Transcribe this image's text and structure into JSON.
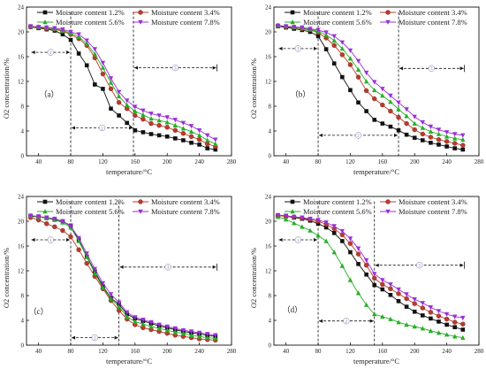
{
  "figure": {
    "panels": [
      "a",
      "b",
      "c",
      "d"
    ]
  },
  "chart_data": [
    {
      "type": "line",
      "panel_label": "（a）",
      "xlabel": "temperature/°C",
      "ylabel": "O2 concentration/%",
      "xlim": [
        25,
        280
      ],
      "ylim": [
        0,
        24
      ],
      "xticks": [
        40,
        80,
        120,
        160,
        200,
        240,
        280
      ],
      "yticks": [
        0,
        4,
        8,
        12,
        16,
        20,
        24
      ],
      "x": [
        30,
        40,
        50,
        60,
        70,
        80,
        90,
        100,
        110,
        120,
        130,
        140,
        150,
        160,
        170,
        180,
        190,
        200,
        210,
        220,
        230,
        240,
        250,
        260
      ],
      "series": [
        {
          "name": "Moisture content 1.2%",
          "marker": "square",
          "color": "#111111",
          "values": [
            20.8,
            20.6,
            20.4,
            20.2,
            19.6,
            18.7,
            16.5,
            14.6,
            11.5,
            10.8,
            7.6,
            6.5,
            5.3,
            4.1,
            3.8,
            3.5,
            3.3,
            3.1,
            2.8,
            2.5,
            2.1,
            1.8,
            1.2,
            1.0
          ]
        },
        {
          "name": "Moisture content 3.4%",
          "marker": "circle",
          "color": "#c0392b",
          "values": [
            20.8,
            20.7,
            20.5,
            20.4,
            20.1,
            19.6,
            18.9,
            17.8,
            15.8,
            13.2,
            10.8,
            8.6,
            7.6,
            6.5,
            5.9,
            5.2,
            4.9,
            4.6,
            4.1,
            3.6,
            3.1,
            2.6,
            1.9,
            1.5
          ]
        },
        {
          "name": "Moisture content 5.6%",
          "marker": "triangle-up",
          "color": "#27ae27",
          "values": [
            20.9,
            20.8,
            20.7,
            20.5,
            20.2,
            19.8,
            19.2,
            18.1,
            16.4,
            14.2,
            11.8,
            9.6,
            8.2,
            7.2,
            6.6,
            6.0,
            5.7,
            5.4,
            4.9,
            4.4,
            3.9,
            3.3,
            2.5,
            1.9
          ]
        },
        {
          "name": "Moisture content 7.8%",
          "marker": "triangle-down",
          "color": "#9b30d9",
          "values": [
            20.9,
            20.8,
            20.7,
            20.6,
            20.4,
            20.0,
            19.6,
            18.6,
            17.2,
            15.0,
            12.5,
            10.3,
            8.9,
            7.9,
            7.3,
            6.8,
            6.5,
            6.2,
            5.8,
            5.3,
            4.8,
            4.1,
            3.3,
            2.6
          ]
        }
      ],
      "zones": [
        {
          "from": 30,
          "to": 80,
          "y": 16.7,
          "label": "①",
          "boundary": 80
        },
        {
          "from": 80,
          "to": 158,
          "y": 4.5,
          "label": "②",
          "boundary": 158
        },
        {
          "from": 158,
          "to": 262,
          "y": 14.2,
          "label": "③",
          "boundary": 262
        }
      ],
      "legend": "top"
    },
    {
      "type": "line",
      "panel_label": "（b）",
      "xlabel": "temperature/°C",
      "ylabel": "O2 concentration/%",
      "xlim": [
        25,
        280
      ],
      "ylim": [
        0,
        24
      ],
      "xticks": [
        40,
        80,
        120,
        160,
        200,
        240,
        280
      ],
      "yticks": [
        0,
        4,
        8,
        12,
        16,
        20,
        24
      ],
      "x": [
        30,
        40,
        50,
        60,
        70,
        80,
        90,
        100,
        110,
        120,
        130,
        140,
        150,
        160,
        170,
        180,
        190,
        200,
        210,
        220,
        230,
        240,
        250,
        260
      ],
      "series": [
        {
          "name": "Moisture content 1.2%",
          "marker": "square",
          "color": "#111111",
          "values": [
            20.9,
            20.7,
            20.5,
            20.3,
            20.0,
            19.3,
            17.2,
            14.9,
            12.7,
            10.6,
            8.6,
            7.2,
            5.8,
            5.2,
            4.7,
            4.1,
            3.4,
            2.9,
            2.5,
            2.1,
            1.8,
            1.5,
            1.2,
            1.0
          ]
        },
        {
          "name": "Moisture content 3.4%",
          "marker": "circle",
          "color": "#c0392b",
          "values": [
            21.0,
            20.8,
            20.7,
            20.5,
            20.3,
            19.9,
            19.0,
            17.8,
            16.3,
            14.7,
            12.7,
            10.5,
            9.2,
            8.2,
            7.2,
            6.2,
            5.2,
            4.2,
            3.5,
            3.0,
            2.6,
            2.3,
            2.0,
            1.7
          ]
        },
        {
          "name": "Moisture content 5.6%",
          "marker": "triangle-up",
          "color": "#27ae27",
          "values": [
            21.0,
            20.9,
            20.8,
            20.6,
            20.4,
            20.1,
            19.5,
            18.6,
            17.3,
            15.7,
            13.9,
            12.0,
            10.6,
            9.7,
            8.7,
            7.5,
            6.4,
            5.2,
            4.5,
            3.9,
            3.5,
            3.1,
            2.8,
            2.6
          ]
        },
        {
          "name": "Moisture content 7.8%",
          "marker": "triangle-down",
          "color": "#9b30d9",
          "values": [
            21.0,
            20.9,
            20.8,
            20.7,
            20.5,
            20.3,
            19.9,
            19.3,
            18.3,
            17.0,
            15.3,
            13.4,
            11.9,
            10.8,
            9.7,
            8.6,
            7.5,
            6.3,
            5.4,
            4.7,
            4.2,
            3.8,
            3.5,
            3.3
          ]
        }
      ],
      "zones": [
        {
          "from": 30,
          "to": 80,
          "y": 17.3,
          "label": "①",
          "boundary": 80
        },
        {
          "from": 80,
          "to": 180,
          "y": 3.3,
          "label": "②",
          "boundary": 180
        },
        {
          "from": 180,
          "to": 262,
          "y": 14.1,
          "label": "③",
          "boundary": 262
        }
      ],
      "legend": "top"
    },
    {
      "type": "line",
      "panel_label": "（c）",
      "xlabel": "temperature/°C",
      "ylabel": "O2 concentration/%",
      "xlim": [
        25,
        280
      ],
      "ylim": [
        0,
        24
      ],
      "xticks": [
        40,
        80,
        120,
        160,
        200,
        240,
        280
      ],
      "yticks": [
        0,
        4,
        8,
        12,
        16,
        20,
        24
      ],
      "x": [
        30,
        40,
        50,
        60,
        70,
        80,
        90,
        100,
        110,
        120,
        130,
        140,
        150,
        160,
        170,
        180,
        190,
        200,
        210,
        220,
        230,
        240,
        250,
        260
      ],
      "series": [
        {
          "name": "Moisture content 1.2%",
          "marker": "square",
          "color": "#111111",
          "values": [
            20.8,
            20.7,
            20.5,
            20.3,
            20.0,
            19.3,
            17.0,
            14.3,
            11.9,
            9.5,
            7.6,
            6.6,
            5.0,
            4.3,
            3.9,
            3.5,
            3.1,
            2.8,
            2.5,
            2.2,
            2.0,
            1.8,
            1.6,
            1.4
          ]
        },
        {
          "name": "Moisture content 3.4%",
          "marker": "circle",
          "color": "#c0392b",
          "values": [
            20.6,
            20.2,
            19.6,
            19.1,
            18.5,
            17.5,
            15.4,
            13.2,
            11.1,
            9.1,
            7.2,
            5.6,
            4.2,
            3.3,
            2.8,
            2.5,
            2.2,
            1.9,
            1.6,
            1.4,
            1.2,
            1.0,
            0.9,
            0.8
          ]
        },
        {
          "name": "Moisture content 5.6%",
          "marker": "triangle-up",
          "color": "#27ae27",
          "values": [
            20.9,
            20.7,
            20.5,
            20.2,
            19.8,
            19.0,
            16.8,
            14.2,
            11.6,
            9.3,
            7.5,
            6.2,
            4.6,
            3.8,
            3.4,
            3.0,
            2.7,
            2.4,
            2.1,
            1.9,
            1.6,
            1.4,
            1.2,
            1.1
          ]
        },
        {
          "name": "Moisture content 7.8%",
          "marker": "triangle-down",
          "color": "#9b30d9",
          "values": [
            20.9,
            20.8,
            20.6,
            20.4,
            20.0,
            19.2,
            17.3,
            14.8,
            12.3,
            10.0,
            8.2,
            6.9,
            5.3,
            4.5,
            4.1,
            3.7,
            3.3,
            3.0,
            2.7,
            2.4,
            2.2,
            2.0,
            1.8,
            1.6
          ]
        }
      ],
      "zones": [
        {
          "from": 30,
          "to": 80,
          "y": 17.0,
          "label": "①",
          "boundary": 80
        },
        {
          "from": 80,
          "to": 140,
          "y": 1.2,
          "label": "②",
          "boundary": 140
        },
        {
          "from": 140,
          "to": 262,
          "y": 12.6,
          "label": "③",
          "boundary": 262
        }
      ],
      "legend": "top"
    },
    {
      "type": "line",
      "panel_label": "（d）",
      "xlabel": "temperature/°C",
      "ylabel": "O2 concentration/%",
      "xlim": [
        25,
        280
      ],
      "ylim": [
        0,
        24
      ],
      "xticks": [
        40,
        80,
        120,
        160,
        200,
        240,
        280
      ],
      "yticks": [
        0,
        4,
        8,
        12,
        16,
        20,
        24
      ],
      "x": [
        30,
        40,
        50,
        60,
        70,
        80,
        90,
        100,
        110,
        120,
        130,
        140,
        150,
        160,
        170,
        180,
        190,
        200,
        210,
        220,
        230,
        240,
        250,
        260
      ],
      "series": [
        {
          "name": "Moisture content 1.2%",
          "marker": "square",
          "color": "#111111",
          "values": [
            20.9,
            20.8,
            20.6,
            20.4,
            20.1,
            19.6,
            19.0,
            18.1,
            16.8,
            15.0,
            13.1,
            11.4,
            9.7,
            9.0,
            8.1,
            7.1,
            6.2,
            5.4,
            4.8,
            4.3,
            3.8,
            3.3,
            2.9,
            2.5
          ]
        },
        {
          "name": "Moisture content 3.4%",
          "marker": "circle",
          "color": "#c0392b",
          "values": [
            20.9,
            20.8,
            20.7,
            20.5,
            20.3,
            20.0,
            19.5,
            18.8,
            17.8,
            16.4,
            14.7,
            12.9,
            10.8,
            9.8,
            9.1,
            8.3,
            7.5,
            6.7,
            6.0,
            5.3,
            4.7,
            4.2,
            3.7,
            3.4
          ]
        },
        {
          "name": "Moisture content 5.6%",
          "marker": "triangle-up",
          "color": "#27ae27",
          "values": [
            20.7,
            20.3,
            19.7,
            19.1,
            18.5,
            17.7,
            16.8,
            15.0,
            12.8,
            10.5,
            8.4,
            6.5,
            5.0,
            4.6,
            4.2,
            3.7,
            3.3,
            3.0,
            2.7,
            2.3,
            2.0,
            1.7,
            1.4,
            1.2
          ]
        },
        {
          "name": "Moisture content 7.8%",
          "marker": "triangle-down",
          "color": "#9b30d9",
          "values": [
            21.0,
            20.9,
            20.7,
            20.6,
            20.4,
            20.2,
            19.8,
            19.2,
            18.4,
            17.2,
            15.6,
            13.7,
            11.5,
            10.5,
            9.8,
            9.0,
            8.2,
            7.4,
            6.8,
            6.1,
            5.5,
            5.0,
            4.6,
            4.4
          ]
        }
      ],
      "zones": [
        {
          "from": 30,
          "to": 80,
          "y": 17.0,
          "label": "①",
          "boundary": 80
        },
        {
          "from": 80,
          "to": 150,
          "y": 3.9,
          "label": "②",
          "boundary": 150
        },
        {
          "from": 150,
          "to": 262,
          "y": 12.9,
          "label": "③",
          "boundary": 262
        }
      ],
      "legend": "top"
    }
  ]
}
